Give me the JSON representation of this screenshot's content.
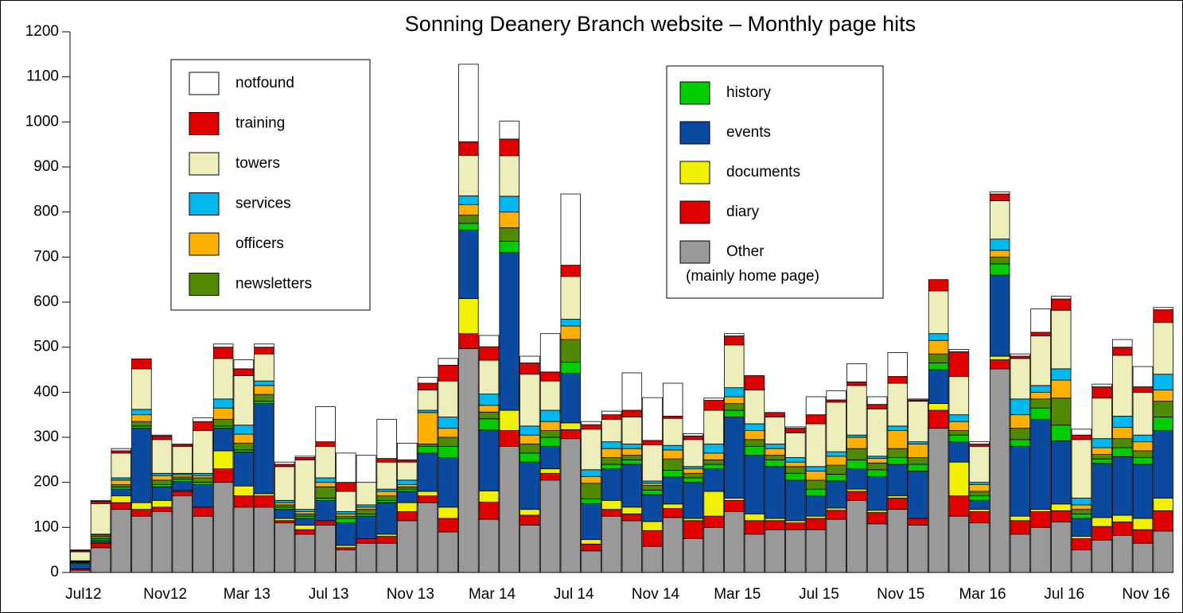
{
  "chart_data": {
    "type": "stacked-bar",
    "title": "Sonning Deanery Branch website – Monthly page hits",
    "other_note": "(mainly home page)",
    "categories": [
      "Jul12",
      null,
      null,
      null,
      "Nov12",
      null,
      null,
      null,
      "Mar 13",
      null,
      null,
      null,
      "Jul 13",
      null,
      null,
      null,
      "Nov 13",
      null,
      null,
      null,
      "Mar 14",
      null,
      null,
      null,
      "Jul 14",
      null,
      null,
      null,
      "Nov 14",
      null,
      null,
      null,
      "Mar 15",
      null,
      null,
      null,
      "Jul 15",
      null,
      null,
      null,
      "Nov 15",
      null,
      null,
      null,
      "Mar 16",
      null,
      null,
      null,
      "Jul 16",
      null,
      null,
      null,
      "Nov 16",
      null
    ],
    "ylim": [
      0,
      1200
    ],
    "yticks": [
      0,
      100,
      200,
      300,
      400,
      500,
      600,
      700,
      800,
      900,
      1000,
      1100,
      1200
    ],
    "series": [
      {
        "name": "Other",
        "color": "#999999",
        "values": [
          5,
          55,
          140,
          125,
          135,
          170,
          125,
          200,
          145,
          145,
          110,
          85,
          105,
          50,
          65,
          65,
          115,
          155,
          90,
          497,
          118,
          280,
          105,
          205,
          297,
          48,
          125,
          115,
          58,
          122,
          75,
          100,
          135,
          85,
          95,
          95,
          95,
          118,
          160,
          108,
          140,
          105,
          320,
          125,
          110,
          452,
          85,
          100,
          112,
          50,
          72,
          82,
          65,
          92
        ]
      },
      {
        "name": "diary",
        "color": "#e00000",
        "values": [
          3,
          10,
          15,
          15,
          10,
          10,
          20,
          30,
          25,
          25,
          5,
          10,
          10,
          5,
          10,
          15,
          20,
          15,
          30,
          33,
          38,
          35,
          22,
          15,
          20,
          15,
          15,
          15,
          35,
          20,
          40,
          25,
          25,
          30,
          20,
          15,
          25,
          20,
          20,
          25,
          25,
          15,
          40,
          45,
          25,
          20,
          30,
          35,
          25,
          25,
          30,
          30,
          30,
          45
        ]
      },
      {
        "name": "documents",
        "color": "#f0f000",
        "values": [
          0,
          2,
          15,
          15,
          15,
          2,
          0,
          40,
          22,
          5,
          5,
          10,
          0,
          5,
          0,
          5,
          20,
          10,
          25,
          78,
          25,
          45,
          13,
          10,
          15,
          10,
          20,
          15,
          20,
          10,
          5,
          55,
          5,
          15,
          5,
          5,
          5,
          5,
          5,
          5,
          5,
          0,
          15,
          75,
          5,
          8,
          10,
          5,
          15,
          5,
          20,
          15,
          25,
          28
        ]
      },
      {
        "name": "events",
        "color": "#0a4aa0",
        "values": [
          12,
          5,
          15,
          165,
          30,
          20,
          50,
          50,
          75,
          200,
          20,
          15,
          45,
          50,
          50,
          70,
          25,
          85,
          110,
          152,
          135,
          350,
          105,
          50,
          110,
          80,
          70,
          95,
          60,
          60,
          80,
          50,
          180,
          130,
          115,
          90,
          45,
          60,
          45,
          75,
          70,
          105,
          75,
          45,
          20,
          180,
          155,
          200,
          140,
          40,
          120,
          130,
          120,
          150
        ]
      },
      {
        "name": "history",
        "color": "#00cc00",
        "values": [
          2,
          3,
          5,
          5,
          5,
          5,
          5,
          5,
          5,
          5,
          5,
          5,
          5,
          10,
          5,
          5,
          5,
          15,
          25,
          15,
          25,
          25,
          20,
          20,
          25,
          10,
          10,
          10,
          10,
          15,
          10,
          10,
          15,
          20,
          15,
          15,
          15,
          15,
          20,
          15,
          15,
          15,
          15,
          15,
          10,
          25,
          15,
          25,
          35,
          10,
          10,
          20,
          15,
          30
        ]
      },
      {
        "name": "newsletters",
        "color": "#4f8a00",
        "values": [
          2,
          5,
          5,
          10,
          10,
          5,
          10,
          15,
          15,
          15,
          5,
          5,
          25,
          5,
          10,
          10,
          5,
          5,
          20,
          18,
          15,
          30,
          20,
          15,
          50,
          35,
          15,
          10,
          10,
          25,
          10,
          10,
          15,
          15,
          10,
          15,
          20,
          20,
          25,
          15,
          20,
          15,
          20,
          10,
          10,
          15,
          25,
          20,
          60,
          10,
          10,
          20,
          15,
          35
        ]
      },
      {
        "name": "officers",
        "color": "#ffb000",
        "values": [
          1,
          3,
          10,
          15,
          10,
          5,
          5,
          25,
          20,
          20,
          5,
          5,
          10,
          5,
          5,
          10,
          5,
          70,
          20,
          23,
          15,
          35,
          20,
          20,
          30,
          15,
          20,
          15,
          5,
          20,
          10,
          15,
          15,
          20,
          15,
          10,
          20,
          20,
          25,
          10,
          40,
          30,
          30,
          20,
          15,
          15,
          30,
          15,
          40,
          10,
          15,
          25,
          20,
          25
        ]
      },
      {
        "name": "services",
        "color": "#00b8f0",
        "values": [
          1,
          2,
          5,
          12,
          5,
          3,
          5,
          20,
          20,
          10,
          5,
          5,
          10,
          5,
          5,
          5,
          10,
          5,
          25,
          20,
          25,
          35,
          20,
          25,
          15,
          15,
          15,
          10,
          5,
          10,
          5,
          20,
          20,
          15,
          10,
          10,
          10,
          10,
          5,
          5,
          10,
          5,
          15,
          15,
          5,
          25,
          35,
          15,
          25,
          15,
          20,
          25,
          15,
          35
        ]
      },
      {
        "name": "towers",
        "color": "#eeeebb",
        "values": [
          20,
          68,
          55,
          90,
          75,
          60,
          95,
          90,
          110,
          60,
          75,
          110,
          70,
          45,
          50,
          60,
          40,
          45,
          80,
          90,
          75,
          90,
          115,
          65,
          95,
          90,
          50,
          60,
          80,
          60,
          60,
          75,
          95,
          75,
          60,
          55,
          95,
          110,
          110,
          105,
          95,
          90,
          95,
          85,
          80,
          85,
          90,
          110,
          130,
          130,
          90,
          135,
          95,
          115
        ]
      },
      {
        "name": "training",
        "color": "#e00000",
        "values": [
          3,
          5,
          5,
          22,
          8,
          3,
          20,
          25,
          15,
          15,
          5,
          5,
          10,
          20,
          0,
          8,
          5,
          15,
          35,
          30,
          30,
          37,
          25,
          20,
          25,
          10,
          10,
          15,
          10,
          5,
          8,
          22,
          20,
          32,
          10,
          10,
          20,
          5,
          8,
          10,
          15,
          3,
          25,
          55,
          5,
          15,
          5,
          8,
          25,
          10,
          25,
          18,
          12,
          28
        ]
      },
      {
        "name": "notfound",
        "color": "#ffffff",
        "values": [
          1,
          2,
          5,
          0,
          2,
          2,
          8,
          7,
          20,
          7,
          5,
          3,
          78,
          65,
          60,
          87,
          37,
          13,
          15,
          172,
          25,
          40,
          15,
          85,
          158,
          7,
          8,
          83,
          95,
          73,
          5,
          5,
          5,
          0,
          0,
          3,
          40,
          20,
          40,
          17,
          53,
          2,
          0,
          5,
          5,
          5,
          5,
          52,
          6,
          13,
          6,
          17,
          45,
          5
        ]
      }
    ]
  }
}
